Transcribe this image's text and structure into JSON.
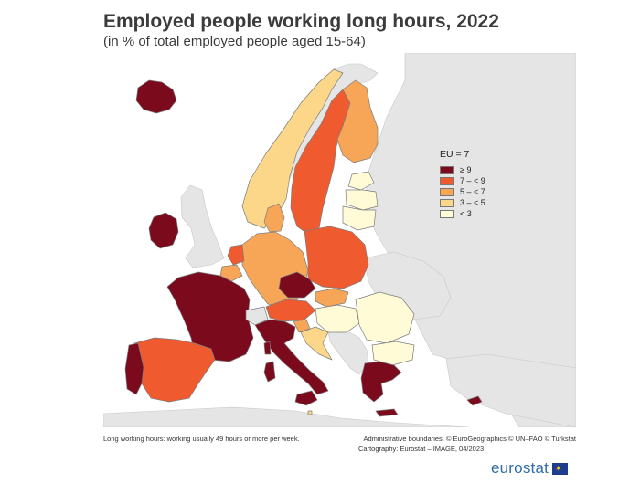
{
  "title": "Employed people working long hours, 2022",
  "subtitle": "(in % of total employed people aged 15-64)",
  "legend": {
    "title": "EU = 7",
    "items": [
      {
        "label": "≥ 9",
        "color": "#7b0a1d"
      },
      {
        "label": "7 – < 9",
        "color": "#ef5b2f"
      },
      {
        "label": "5 – < 7",
        "color": "#f7a657"
      },
      {
        "label": "3 – < 5",
        "color": "#fcd78a"
      },
      {
        "label": "< 3",
        "color": "#fefbd6"
      }
    ]
  },
  "colors": {
    "ocean": "#ffffff",
    "non_eu": "#e5e5e5",
    "border": "#8a8a8a",
    "no_data": "#ffffff"
  },
  "footnote_left": "Long working hours: working usually 49 hours or more per week.",
  "footnote_right_line1": "Administrative boundaries: © EuroGeographics © UN–FAO © Turkstat",
  "footnote_right_line2": "Cartography: Eurostat – IMAGE, 04/2023",
  "brand": {
    "wordmark": "eurostat",
    "flag_icon": "eu-flag-icon"
  }
}
